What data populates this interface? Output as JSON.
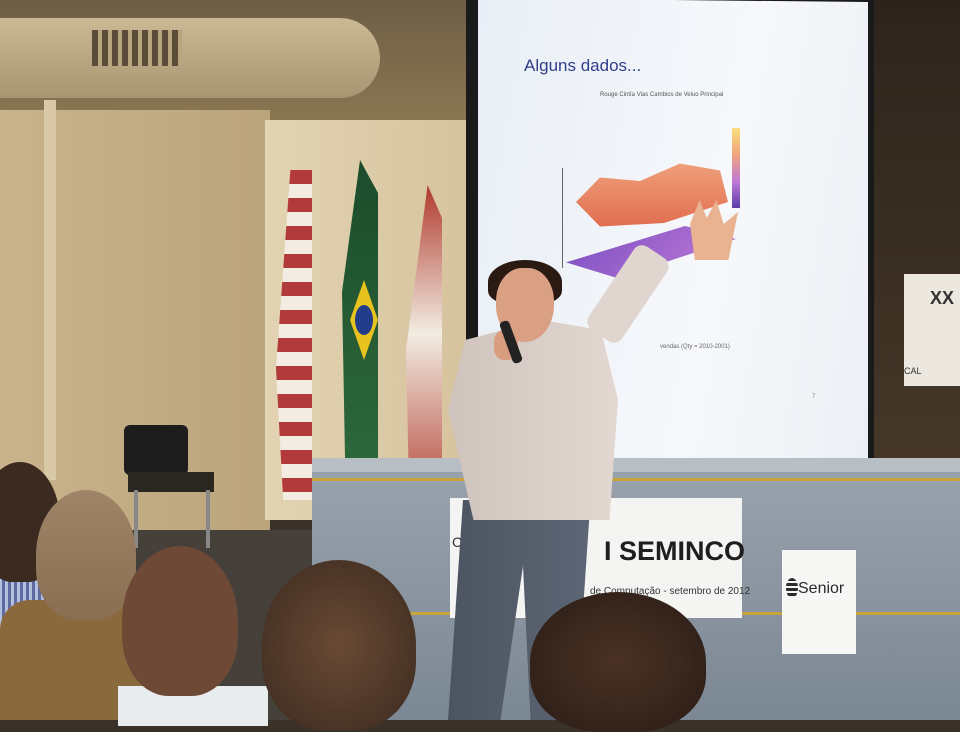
{
  "scene": {
    "slide": {
      "title": "Alguns dados...",
      "chart_title": "Rouge Cintía Vias Cambios de Veluo Principal",
      "caption": "vendas (Qty = 2010-2001)",
      "page_number": "7"
    },
    "stage_banner": {
      "logo": "CA",
      "title": "I SEMINCO",
      "subtitle": "de Computação - setembro de 2012"
    },
    "sponsor": {
      "name": "Senior"
    },
    "poster": {
      "text": "XX",
      "footer": "CAL"
    },
    "colors": {
      "slide_title": "#2f3f8a",
      "surface": "#e06b4e",
      "plane": "#7a4fc2",
      "stage_stripe": "#c9a43c"
    }
  }
}
